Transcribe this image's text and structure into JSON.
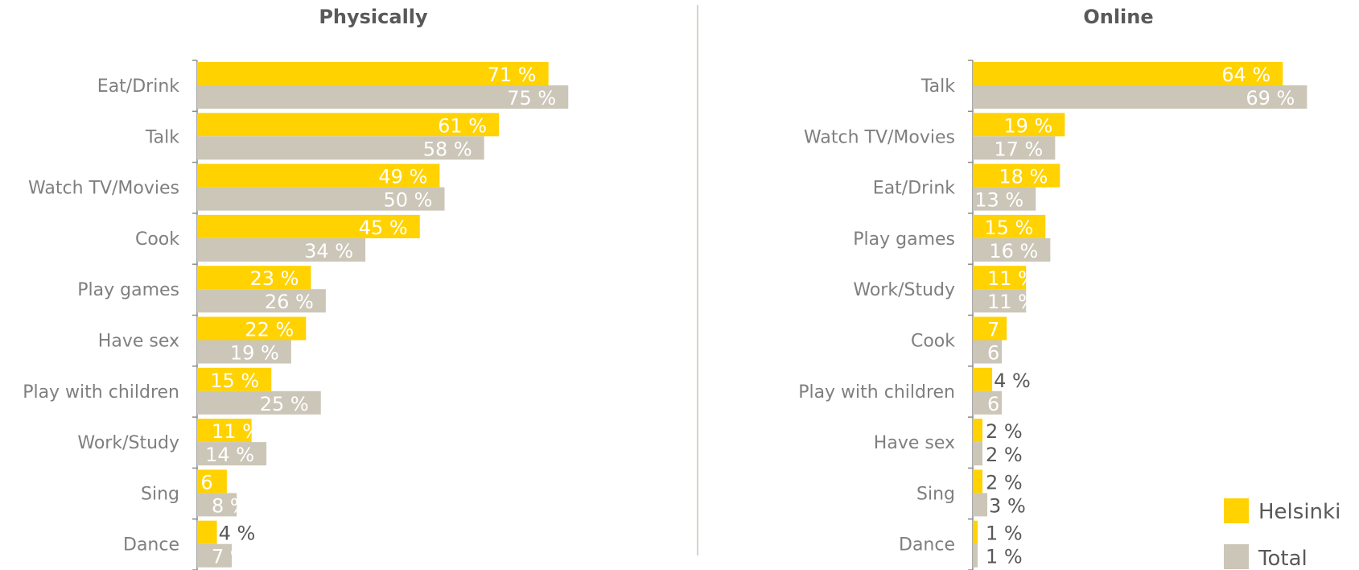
{
  "colors": {
    "helsinki": "#FFD200",
    "total": "#CCC6B8"
  },
  "legend": {
    "helsinki": "Helsinki",
    "total": "Total"
  },
  "chart_data": [
    {
      "type": "bar",
      "orientation": "horizontal",
      "title": "Physically",
      "categories": [
        "Eat/Drink",
        "Talk",
        "Watch TV/Movies",
        "Cook",
        "Play games",
        "Have sex",
        "Play with children",
        "Work/Study",
        "Sing",
        "Dance"
      ],
      "series": [
        {
          "name": "Helsinki",
          "values": [
            71,
            61,
            49,
            45,
            23,
            22,
            15,
            11,
            6,
            4
          ],
          "labels": [
            "71 %",
            "61 %",
            "49 %",
            "45 %",
            "23 %",
            "22 %",
            "15 %",
            "11 %",
            "6",
            "4 %"
          ]
        },
        {
          "name": "Total",
          "values": [
            75,
            58,
            50,
            34,
            26,
            19,
            25,
            14,
            8,
            7
          ],
          "labels": [
            "75 %",
            "58 %",
            "50 %",
            "34 %",
            "26 %",
            "19 %",
            "25 %",
            "14 %",
            "8 %",
            "7 %"
          ]
        }
      ],
      "xlim": [
        0,
        100
      ]
    },
    {
      "type": "bar",
      "orientation": "horizontal",
      "title": "Online",
      "categories": [
        "Talk",
        "Watch TV/Movies",
        "Eat/Drink",
        "Play games",
        "Work/Study",
        "Cook",
        "Play with children",
        "Have sex",
        "Sing",
        "Dance"
      ],
      "series": [
        {
          "name": "Helsinki",
          "values": [
            64,
            19,
            18,
            15,
            11,
            7,
            4,
            2,
            2,
            1
          ],
          "labels": [
            "64 %",
            "19 %",
            "18 %",
            "15 %",
            "11 %",
            "7 %",
            "4 %",
            "2 %",
            "2 %",
            "1 %"
          ]
        },
        {
          "name": "Total",
          "values": [
            69,
            17,
            13,
            16,
            11,
            6,
            6,
            2,
            3,
            1
          ],
          "labels": [
            "69 %",
            "17 %",
            "13 %",
            "16 %",
            "11 %",
            "6 %",
            "6 %",
            "2 %",
            "3 %",
            "1 %"
          ]
        }
      ],
      "xlim": [
        0,
        80
      ],
      "legend_position": "bottom-right"
    }
  ]
}
